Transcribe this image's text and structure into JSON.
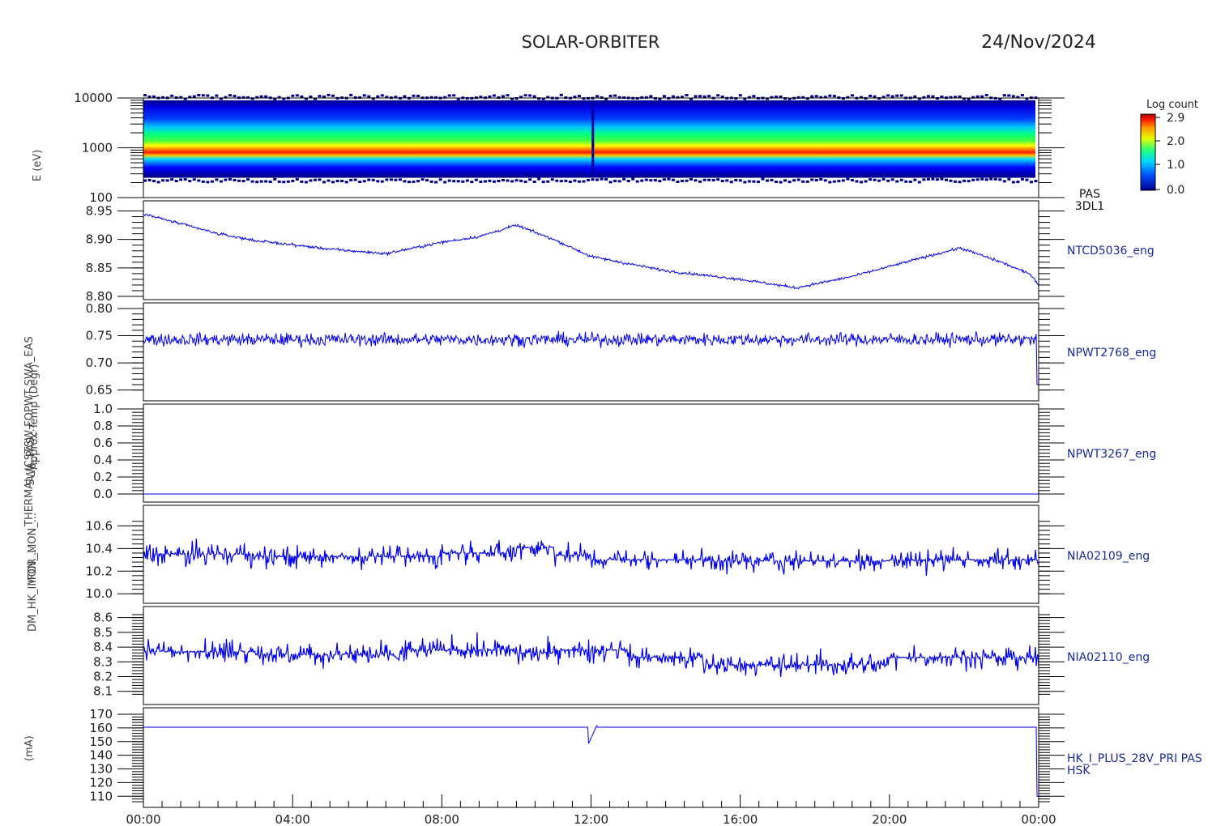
{
  "header": {
    "mission": "SOLAR-ORBITER",
    "date": "24/Nov/2024"
  },
  "colorbar": {
    "title": "Log count",
    "ticks": [
      "2.9",
      "2.0",
      "1.0",
      "0.0"
    ]
  },
  "chart_data": {
    "type": "line",
    "x_ticks": [
      "00:00",
      "04:00",
      "08:00",
      "12:00",
      "16:00",
      "20:00",
      "00:00"
    ],
    "x_range_hours": [
      0,
      24
    ],
    "ylabels_overlapped": [
      "E (eV)",
      "Approx Temp (Degr)",
      "TSW FOPWT SWA_EAS",
      "SWA_PAS_...",
      "THERMAL_ICS",
      "IFOR_MON_...",
      "DM_HK_IMON_...",
      "(mA)"
    ],
    "panels": [
      {
        "type": "heatmap",
        "label": "PAS\n3DL1",
        "label_lines": [
          "PAS",
          "3DL1"
        ],
        "y_scale": "log",
        "y_range": [
          100,
          10000
        ],
        "y_ticks": [
          "10000",
          "1000",
          "100"
        ],
        "z_range": [
          0.0,
          2.9
        ],
        "peak_energy_eV": 800,
        "band_upper_eV": 9000,
        "band_lower_eV": 250,
        "disturbance_hour": 12.05
      },
      {
        "type": "line",
        "label": "NTCD5036_eng",
        "y_range": [
          8.8,
          8.955
        ],
        "y_ticks": [
          "8.95",
          "8.90",
          "8.85",
          "8.80"
        ],
        "keypoints": [
          [
            0,
            8.945
          ],
          [
            2,
            8.91
          ],
          [
            3,
            8.898
          ],
          [
            5,
            8.883
          ],
          [
            6.5,
            8.875
          ],
          [
            8,
            8.895
          ],
          [
            9,
            8.905
          ],
          [
            10,
            8.925
          ],
          [
            11,
            8.9
          ],
          [
            12,
            8.87
          ],
          [
            14,
            8.845
          ],
          [
            16,
            8.83
          ],
          [
            17.5,
            8.815
          ],
          [
            19,
            8.835
          ],
          [
            21,
            8.87
          ],
          [
            21.9,
            8.885
          ],
          [
            23,
            8.86
          ],
          [
            23.8,
            8.838
          ],
          [
            24,
            8.82
          ]
        ]
      },
      {
        "type": "line",
        "label": "NPWT2768_eng",
        "y_range": [
          0.645,
          0.8
        ],
        "y_ticks": [
          "0.80",
          "0.75",
          "0.70",
          "0.65"
        ],
        "base": 0.743,
        "noise": 0.012,
        "end_drop": 0.66
      },
      {
        "type": "line",
        "label": "NPWT3267_eng",
        "y_range": [
          0.0,
          1.0
        ],
        "y_ticks": [
          "1.0",
          "0.8",
          "0.6",
          "0.4",
          "0.2",
          "0.0"
        ],
        "base": 0.0
      },
      {
        "type": "line",
        "label": "NIA02109_eng",
        "y_range": [
          9.98,
          10.66
        ],
        "y_ticks": [
          "10.6",
          "10.4",
          "10.2",
          "10.0"
        ],
        "base_segments": [
          [
            0,
            3,
            10.35
          ],
          [
            3,
            8,
            10.33
          ],
          [
            8,
            10,
            10.36
          ],
          [
            10,
            11,
            10.41
          ],
          [
            11,
            12,
            10.34
          ],
          [
            12,
            15,
            10.3
          ],
          [
            15,
            20,
            10.29
          ],
          [
            20,
            24,
            10.3
          ]
        ],
        "noise": 0.15
      },
      {
        "type": "line",
        "label": "NIA02110_eng",
        "y_range": [
          8.06,
          8.62
        ],
        "y_ticks": [
          "8.6",
          "8.5",
          "8.4",
          "8.3",
          "8.2",
          "8.1"
        ],
        "base_segments": [
          [
            0,
            3,
            8.37
          ],
          [
            3,
            7,
            8.35
          ],
          [
            7,
            10,
            8.38
          ],
          [
            10,
            11,
            8.36
          ],
          [
            11,
            13,
            8.38
          ],
          [
            13,
            15,
            8.33
          ],
          [
            15,
            20,
            8.28
          ],
          [
            20,
            24,
            8.33
          ]
        ],
        "noise": 0.12
      },
      {
        "type": "line",
        "label": "HK_I_PLUS_28V_PRI PAS\nHSK",
        "label_lines": [
          "HK_I_PLUS_28V_PRI PAS",
          "HSK"
        ],
        "y_range": [
          106,
          170
        ],
        "y_ticks": [
          "170",
          "160",
          "150",
          "140",
          "130",
          "120",
          "110"
        ],
        "base": 160.5,
        "spike_hour": 12.05,
        "end_drop": 110
      }
    ]
  }
}
